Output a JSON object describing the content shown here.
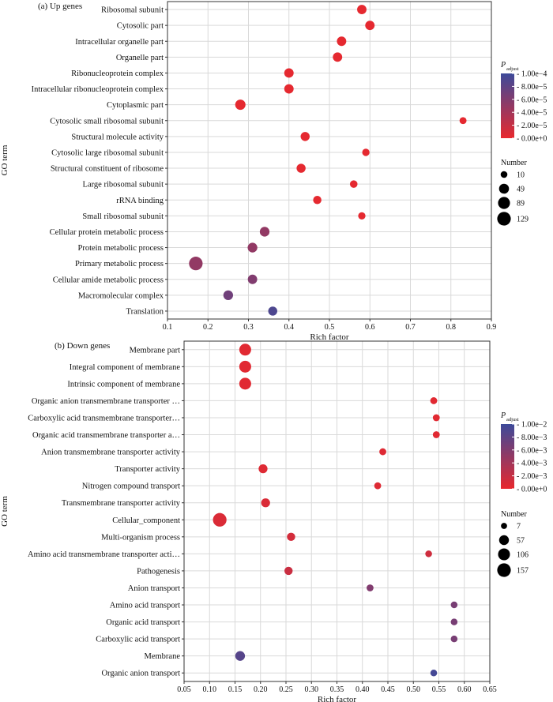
{
  "chart_data": [
    {
      "type": "scatter",
      "title": "(a) Up genes",
      "xlabel": "Rich factor",
      "ylabel": "GO term",
      "xlim": [
        0.1,
        0.9
      ],
      "xticks": [
        "0.1",
        "0.2",
        "0.3",
        "0.4",
        "0.5",
        "0.6",
        "0.7",
        "0.8",
        "0.9"
      ],
      "grid": true,
      "terms": [
        {
          "term": "Ribosomal subunit",
          "rich": 0.58,
          "count": 40,
          "padj": 2e-06
        },
        {
          "term": "Cytosolic part",
          "rich": 0.6,
          "count": 40,
          "padj": 2e-06
        },
        {
          "term": "Intracellular organelle part",
          "rich": 0.53,
          "count": 40,
          "padj": 2e-06
        },
        {
          "term": "Organelle part",
          "rich": 0.52,
          "count": 40,
          "padj": 2e-06
        },
        {
          "term": "Ribonucleoprotein complex",
          "rich": 0.4,
          "count": 40,
          "padj": 2e-06
        },
        {
          "term": "Intracellular ribonucleoprotein complex",
          "rich": 0.4,
          "count": 40,
          "padj": 2e-06
        },
        {
          "term": "Cytoplasmic part",
          "rich": 0.28,
          "count": 55,
          "padj": 2e-06
        },
        {
          "term": "Cytosolic small ribosomal subunit",
          "rich": 0.83,
          "count": 12,
          "padj": 2e-06
        },
        {
          "term": "Structural molecule activity",
          "rich": 0.44,
          "count": 35,
          "padj": 2e-06
        },
        {
          "term": "Cytosolic large ribosomal subunit",
          "rich": 0.59,
          "count": 15,
          "padj": 2e-06
        },
        {
          "term": "Structural constituent of ribosome",
          "rich": 0.43,
          "count": 35,
          "padj": 2e-06
        },
        {
          "term": "Large ribosomal subunit",
          "rich": 0.56,
          "count": 17,
          "padj": 2e-06
        },
        {
          "term": "rRNA binding",
          "rich": 0.47,
          "count": 25,
          "padj": 2e-06
        },
        {
          "term": "Small ribosomal subunit",
          "rich": 0.58,
          "count": 15,
          "padj": 2e-06
        },
        {
          "term": "Cellular protein metabolic process",
          "rich": 0.34,
          "count": 45,
          "padj": 5e-05
        },
        {
          "term": "Protein metabolic process",
          "rich": 0.31,
          "count": 45,
          "padj": 5e-05
        },
        {
          "term": "Primary metabolic process",
          "rich": 0.17,
          "count": 129,
          "padj": 5e-05
        },
        {
          "term": "Cellular amide metabolic process",
          "rich": 0.31,
          "count": 40,
          "padj": 6e-05
        },
        {
          "term": "Macromolecular complex",
          "rich": 0.25,
          "count": 45,
          "padj": 7e-05
        },
        {
          "term": "Translation",
          "rich": 0.36,
          "count": 35,
          "padj": 9e-05
        }
      ],
      "colorbar": {
        "title": "P",
        "subscript": "adjust",
        "ticks": [
          "1.00e−4",
          "8.00e−5",
          "6.00e−5",
          "4.00e−5",
          "2.00e−5",
          "0.00e+0"
        ],
        "min": 0,
        "max": 0.0001,
        "low_color": "#e8282e",
        "high_color": "#3c4a9a"
      },
      "size_legend": {
        "title": "Number",
        "labels": [
          "10",
          "49",
          "89",
          "129"
        ],
        "values": [
          10,
          49,
          89,
          129
        ],
        "max": 129
      }
    },
    {
      "type": "scatter",
      "title": "(b) Down genes",
      "xlabel": "Rich factor",
      "ylabel": "GO term",
      "xlim": [
        0.05,
        0.65
      ],
      "xticks": [
        "0.05",
        "0.10",
        "0.15",
        "0.20",
        "0.25",
        "0.30",
        "0.35",
        "0.40",
        "0.45",
        "0.50",
        "0.55",
        "0.60",
        "0.65"
      ],
      "grid": true,
      "terms": [
        {
          "term": "Membrane part",
          "rich": 0.17,
          "count": 105,
          "padj": 0.0004
        },
        {
          "term": "Integral component of membrane",
          "rich": 0.17,
          "count": 105,
          "padj": 0.0004
        },
        {
          "term": "Intrinsic component of membrane",
          "rich": 0.17,
          "count": 105,
          "padj": 0.0004
        },
        {
          "term": "Organic anion transmembrane transporter …",
          "rich": 0.54,
          "count": 14,
          "padj": 0.0004
        },
        {
          "term": "Carboxylic acid transmembrane transporter…",
          "rich": 0.545,
          "count": 14,
          "padj": 0.0004
        },
        {
          "term": "Organic acid transmembrane transporter a…",
          "rich": 0.545,
          "count": 14,
          "padj": 0.0004
        },
        {
          "term": "Anion transmembrane transporter activity",
          "rich": 0.44,
          "count": 14,
          "padj": 0.0006
        },
        {
          "term": "Transporter activity",
          "rich": 0.205,
          "count": 40,
          "padj": 0.0006
        },
        {
          "term": "Nitrogen compound transport",
          "rich": 0.43,
          "count": 14,
          "padj": 0.0006
        },
        {
          "term": "Transmembrane transporter activity",
          "rich": 0.21,
          "count": 40,
          "padj": 0.0008
        },
        {
          "term": "Cellular_component",
          "rich": 0.12,
          "count": 157,
          "padj": 0.0008
        },
        {
          "term": "Multi-organism process",
          "rich": 0.26,
          "count": 30,
          "padj": 0.0012
        },
        {
          "term": "Amino acid transmembrane transporter acti…",
          "rich": 0.53,
          "count": 12,
          "padj": 0.0015
        },
        {
          "term": "Pathogenesis",
          "rich": 0.255,
          "count": 30,
          "padj": 0.0018
        },
        {
          "term": "Anion transport",
          "rich": 0.415,
          "count": 14,
          "padj": 0.006
        },
        {
          "term": "Amino acid transport",
          "rich": 0.58,
          "count": 12,
          "padj": 0.0065
        },
        {
          "term": "Organic acid transport",
          "rich": 0.58,
          "count": 12,
          "padj": 0.0065
        },
        {
          "term": "Carboxylic acid transport",
          "rich": 0.58,
          "count": 12,
          "padj": 0.0065
        },
        {
          "term": "Membrane",
          "rich": 0.16,
          "count": 55,
          "padj": 0.0085
        },
        {
          "term": "Organic anion transport",
          "rich": 0.54,
          "count": 12,
          "padj": 0.0095
        }
      ],
      "colorbar": {
        "title": "P",
        "subscript": "adjust",
        "ticks": [
          "1.00e−2",
          "8.00e−3",
          "6.00e−3",
          "4.00e−3",
          "2.00e−3",
          "0.00e+0"
        ],
        "min": 0,
        "max": 0.01,
        "low_color": "#e8282e",
        "high_color": "#3c4a9a"
      },
      "size_legend": {
        "title": "Number",
        "labels": [
          "7",
          "57",
          "106",
          "157"
        ],
        "values": [
          7,
          57,
          106,
          157
        ],
        "max": 157
      }
    }
  ]
}
